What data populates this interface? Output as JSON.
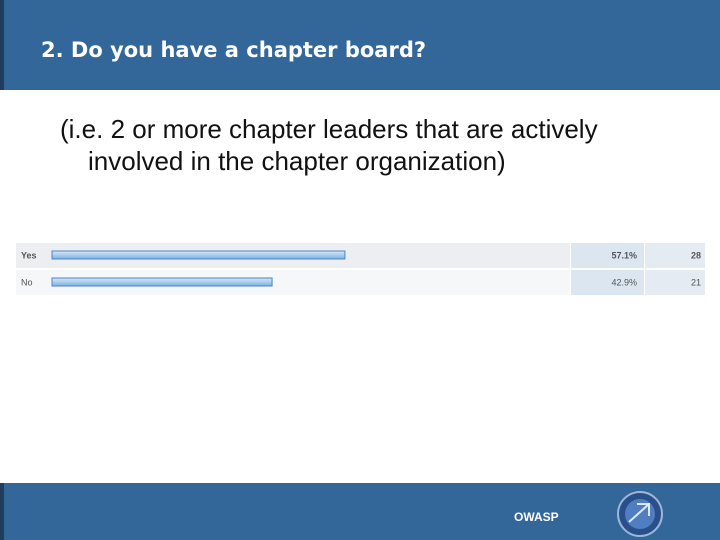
{
  "header": {
    "title": "2. Do you have a chapter board?"
  },
  "subtitle": "(i.e. 2 or more chapter leaders that are actively involved in the chapter organization)",
  "chart_data": {
    "type": "bar",
    "orientation": "horizontal",
    "categories": [
      "Yes",
      "No"
    ],
    "values": [
      57.1,
      42.9
    ],
    "value_labels": [
      "57.1%",
      "42.9%"
    ],
    "counts": [
      28,
      21
    ],
    "xlim": [
      0,
      100
    ],
    "color": "#a9cbee"
  },
  "footer": {
    "label": "OWASP"
  }
}
